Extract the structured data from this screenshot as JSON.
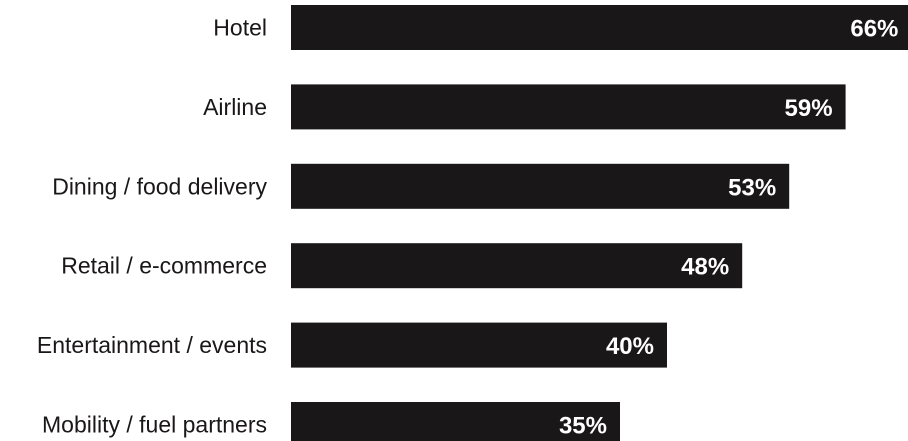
{
  "chart_data": {
    "type": "bar",
    "orientation": "horizontal",
    "categories": [
      "Hotel",
      "Airline",
      "Dining / food delivery",
      "Retail / e-commerce",
      "Entertainment / events",
      "Mobility / fuel partners"
    ],
    "values": [
      66,
      59,
      53,
      48,
      40,
      35
    ],
    "value_labels": [
      "66%",
      "59%",
      "53%",
      "48%",
      "40%",
      "35%"
    ],
    "unit": "%",
    "bar_color": "#1a1718",
    "value_label_color": "#ffffff",
    "grid": false,
    "legend": "none"
  }
}
